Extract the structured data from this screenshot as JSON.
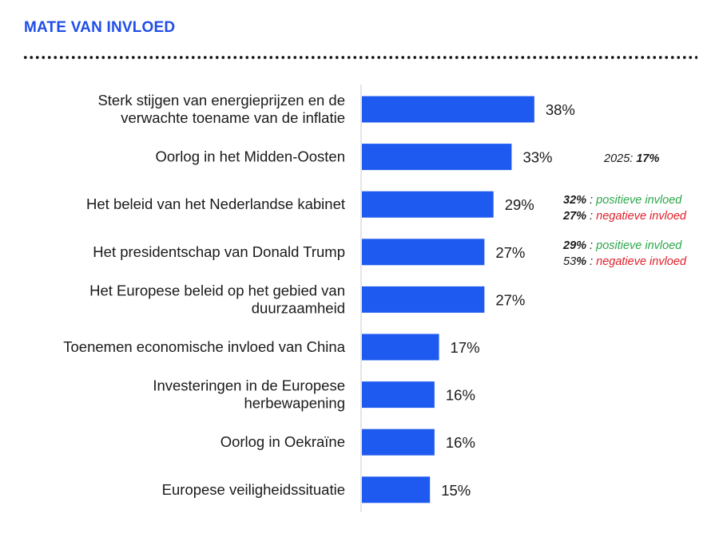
{
  "header": {
    "title": "MATE VAN INVLOED"
  },
  "chart_data": {
    "type": "bar",
    "orientation": "horizontal",
    "categories": [
      [
        "Sterk stijgen van energieprijzen en de",
        "verwachte toename van de inflatie"
      ],
      [
        "Oorlog in het Midden-Oosten"
      ],
      [
        "Het beleid van het Nederlandse kabinet"
      ],
      [
        "Het presidentschap van Donald Trump"
      ],
      [
        "Het Europese beleid op het gebied van",
        "duurzaamheid"
      ],
      [
        "Toenemen economische invloed van China"
      ],
      [
        "Investeringen in de Europese",
        "herbewapening"
      ],
      [
        "Oorlog in Oekraïne"
      ],
      [
        "Europese veiligheidssituatie"
      ]
    ],
    "values": [
      38,
      33,
      29,
      27,
      27,
      17,
      16,
      16,
      15
    ],
    "value_labels": [
      "38%",
      "33%",
      "29%",
      "27%",
      "27%",
      "17%",
      "16%",
      "16%",
      "15%"
    ],
    "bar_color": "#1f5af0",
    "xlim": [
      0,
      100
    ]
  },
  "annotations": {
    "midden_oosten": {
      "prefix": "2025: ",
      "value": "17%"
    },
    "kabinet": [
      {
        "value": "32%",
        "sep": " : ",
        "text": "positieve invloed"
      },
      {
        "value": "27%",
        "sep": " : ",
        "text": "negatieve invloed"
      }
    ],
    "trump": [
      {
        "value": "29%",
        "sep": " : ",
        "text": "positieve invloed"
      },
      {
        "value_plain": "53",
        "value_bold": "%",
        "sep": " : ",
        "text": "negatieve invloed"
      }
    ]
  }
}
